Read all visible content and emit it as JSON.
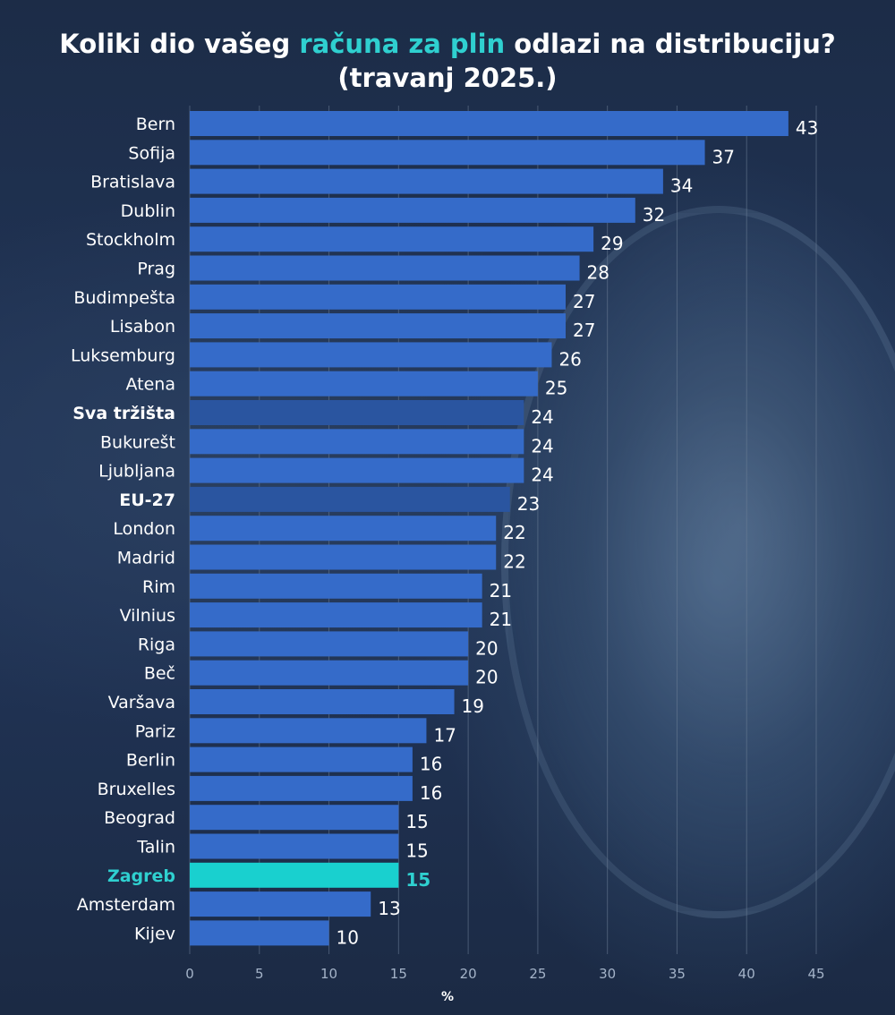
{
  "title": {
    "part1": "Koliki dio vašeg ",
    "highlight": "računa za plin",
    "part2": " odlazi na distribuciju?",
    "line2": "(travanj 2025.)"
  },
  "colors": {
    "bar": "#356bc9",
    "bar_aggregate": "#2a55a0",
    "bar_highlight": "#19d0cf",
    "text_highlight": "#2fd0d0",
    "grid": "#6e7f98"
  },
  "chart_data": {
    "type": "bar",
    "orientation": "horizontal",
    "categories": [
      "Bern",
      "Sofija",
      "Bratislava",
      "Dublin",
      "Stockholm",
      "Prag",
      "Budimpešta",
      "Lisabon",
      "Luksemburg",
      "Atena",
      "Sva tržišta",
      "Bukurešt",
      "Ljubljana",
      "EU-27",
      "London",
      "Madrid",
      "Rim",
      "Vilnius",
      "Riga",
      "Beč",
      "Varšava",
      "Pariz",
      "Berlin",
      "Bruxelles",
      "Beograd",
      "Talin",
      "Zagreb",
      "Amsterdam",
      "Kijev"
    ],
    "values": [
      43,
      37,
      34,
      32,
      29,
      28,
      27,
      27,
      26,
      25,
      24,
      24,
      24,
      23,
      22,
      22,
      21,
      21,
      20,
      20,
      19,
      17,
      16,
      16,
      15,
      15,
      15,
      13,
      10
    ],
    "bold_categories": [
      "Sva tržišta",
      "EU-27"
    ],
    "highlight_category": "Zagreb",
    "xlabel": "%",
    "xlim": [
      0,
      45
    ],
    "xticks": [
      0,
      5,
      10,
      15,
      20,
      25,
      30,
      35,
      40,
      45
    ],
    "grid": true,
    "legend": "none"
  }
}
